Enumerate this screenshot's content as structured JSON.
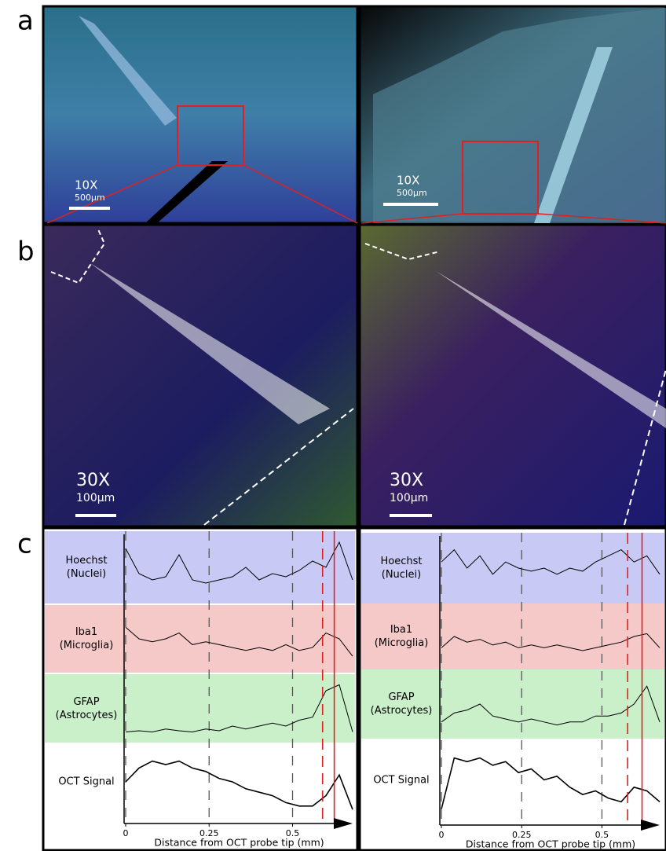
{
  "panel_labels": {
    "a": "a",
    "b": "b",
    "c": "c"
  },
  "images": {
    "a_left": {
      "magnification": "10X",
      "scale": "500µm"
    },
    "a_right": {
      "magnification": "10X",
      "scale": "500µm"
    },
    "b_left": {
      "magnification": "30X",
      "scale": "100µm"
    },
    "b_right": {
      "magnification": "30X",
      "scale": "100µm"
    }
  },
  "chart_data": [
    {
      "type": "line",
      "xlabel": "Distance from OCT probe tip (mm)",
      "x": [
        0,
        0.04,
        0.08,
        0.12,
        0.16,
        0.2,
        0.24,
        0.28,
        0.32,
        0.36,
        0.4,
        0.44,
        0.48,
        0.52,
        0.56,
        0.6,
        0.64,
        0.68
      ],
      "xlim": [
        0,
        0.68
      ],
      "xticks": [
        0,
        0.25,
        0.5
      ],
      "ylim": [
        0,
        1
      ],
      "markers": [
        {
          "value": 0.59,
          "style": "dashed",
          "color": "#e02020"
        },
        {
          "value": 0.625,
          "style": "solid",
          "color": "#e02020"
        }
      ],
      "series": [
        {
          "name": "Hoechst (Nuclei)",
          "color": "#000000",
          "band_color": "#c9c9f6",
          "values": [
            0.8,
            0.4,
            0.3,
            0.35,
            0.7,
            0.3,
            0.25,
            0.3,
            0.35,
            0.5,
            0.3,
            0.4,
            0.35,
            0.45,
            0.6,
            0.5,
            0.9,
            0.3
          ]
        },
        {
          "name": "Iba1 (Microglia)",
          "color": "#000000",
          "band_color": "#f6c9c9",
          "values": [
            0.7,
            0.5,
            0.45,
            0.5,
            0.6,
            0.4,
            0.45,
            0.4,
            0.35,
            0.3,
            0.35,
            0.3,
            0.4,
            0.3,
            0.35,
            0.6,
            0.5,
            0.2
          ]
        },
        {
          "name": "GFAP (Astrocytes)",
          "color": "#000000",
          "band_color": "#c9f0c9",
          "values": [
            0.1,
            0.12,
            0.1,
            0.15,
            0.12,
            0.1,
            0.15,
            0.12,
            0.2,
            0.15,
            0.2,
            0.25,
            0.2,
            0.3,
            0.35,
            0.8,
            0.9,
            0.1
          ]
        },
        {
          "name": "OCT Signal",
          "color": "#000000",
          "band_color": "#ffffff",
          "values": [
            0.5,
            0.7,
            0.8,
            0.75,
            0.8,
            0.7,
            0.65,
            0.55,
            0.5,
            0.4,
            0.35,
            0.3,
            0.2,
            0.15,
            0.15,
            0.3,
            0.6,
            0.1
          ]
        }
      ]
    },
    {
      "type": "line",
      "xlabel": "Distance from OCT probe tip (mm)",
      "x": [
        0,
        0.04,
        0.08,
        0.12,
        0.16,
        0.2,
        0.24,
        0.28,
        0.32,
        0.36,
        0.4,
        0.44,
        0.48,
        0.52,
        0.56,
        0.6,
        0.64,
        0.68
      ],
      "xlim": [
        0,
        0.68
      ],
      "xticks": [
        0,
        0.25,
        0.5
      ],
      "ylim": [
        0,
        1
      ],
      "markers": [
        {
          "value": 0.58,
          "style": "dashed",
          "color": "#e02020"
        },
        {
          "value": 0.625,
          "style": "solid",
          "color": "#e02020"
        }
      ],
      "series": [
        {
          "name": "Hoechst (Nuclei)",
          "color": "#000000",
          "band_color": "#c9c9f6",
          "values": [
            0.6,
            0.8,
            0.5,
            0.7,
            0.4,
            0.6,
            0.5,
            0.45,
            0.5,
            0.4,
            0.5,
            0.45,
            0.6,
            0.7,
            0.8,
            0.6,
            0.7,
            0.4
          ]
        },
        {
          "name": "Iba1 (Microglia)",
          "color": "#000000",
          "band_color": "#f6c9c9",
          "values": [
            0.3,
            0.5,
            0.4,
            0.45,
            0.35,
            0.4,
            0.3,
            0.35,
            0.3,
            0.35,
            0.3,
            0.25,
            0.3,
            0.35,
            0.4,
            0.5,
            0.55,
            0.3
          ]
        },
        {
          "name": "GFAP (Astrocytes)",
          "color": "#000000",
          "band_color": "#c9f0c9",
          "values": [
            0.2,
            0.35,
            0.4,
            0.5,
            0.3,
            0.25,
            0.2,
            0.25,
            0.2,
            0.15,
            0.2,
            0.2,
            0.3,
            0.3,
            0.35,
            0.5,
            0.8,
            0.2
          ]
        },
        {
          "name": "OCT Signal",
          "color": "#000000",
          "band_color": "#ffffff",
          "values": [
            0.1,
            0.8,
            0.75,
            0.8,
            0.7,
            0.75,
            0.6,
            0.65,
            0.5,
            0.55,
            0.4,
            0.3,
            0.35,
            0.25,
            0.2,
            0.4,
            0.35,
            0.2
          ]
        }
      ]
    }
  ]
}
